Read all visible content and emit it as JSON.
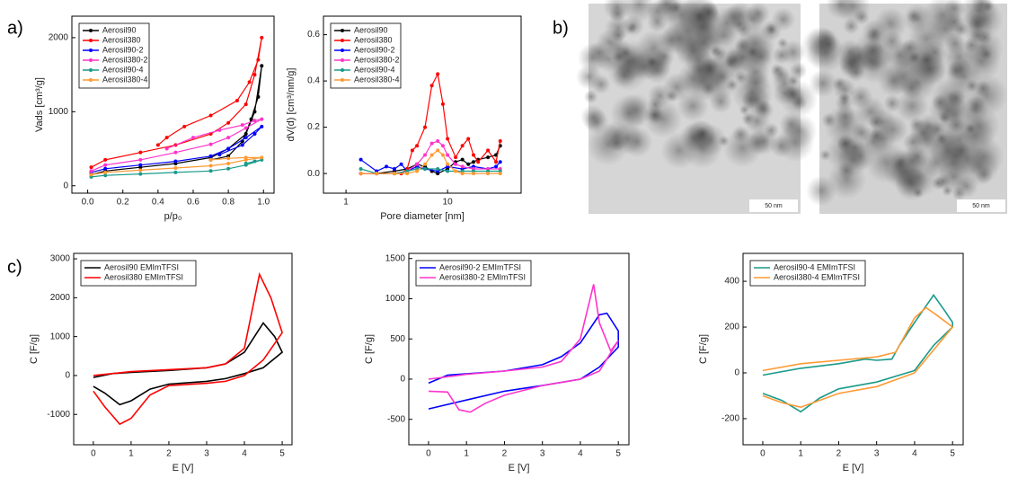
{
  "panel_labels": [
    "a)",
    "b)",
    "c)"
  ],
  "images": [
    {
      "scale_bar": "50 nm"
    },
    {
      "scale_bar": "50 nm"
    }
  ],
  "chart_data": [
    {
      "type": "line",
      "x_label": "p/p₀",
      "y_label": "Vads [cm³/g]",
      "markers": true,
      "legend": "upper left",
      "xlim": [
        -0.09,
        1.06
      ],
      "xticks": [
        {
          "value": 0,
          "label": "0.0"
        },
        0.2,
        0.4,
        0.6,
        0.8,
        {
          "value": 1,
          "label": "1.0"
        }
      ],
      "ylim": [
        -100,
        2290
      ],
      "yticks": [
        0,
        1000,
        2000
      ],
      "series": [
        {
          "name": "Aerosil90",
          "color": "#000000",
          "x": [
            0.02,
            0.1,
            0.3,
            0.5,
            0.7,
            0.8,
            0.9,
            0.95,
            0.99,
            0.97,
            0.93,
            0.88,
            0.8,
            0.7
          ],
          "values": [
            150,
            200,
            250,
            300,
            380,
            500,
            700,
            1000,
            1620,
            1200,
            900,
            600,
            400,
            350
          ]
        },
        {
          "name": "Aerosil380",
          "color": "#ff0000",
          "x": [
            0.02,
            0.1,
            0.3,
            0.5,
            0.7,
            0.8,
            0.9,
            0.95,
            0.99,
            0.97,
            0.92,
            0.85,
            0.7,
            0.55,
            0.45,
            0.4
          ],
          "values": [
            250,
            350,
            450,
            550,
            700,
            850,
            1100,
            1500,
            2000,
            1700,
            1400,
            1150,
            950,
            800,
            650,
            550
          ]
        },
        {
          "name": "Aerosil90-2",
          "color": "#0000ff",
          "x": [
            0.02,
            0.1,
            0.3,
            0.5,
            0.7,
            0.8,
            0.9,
            0.99,
            0.95,
            0.88,
            0.75
          ],
          "values": [
            180,
            230,
            280,
            330,
            400,
            500,
            650,
            800,
            700,
            550,
            420
          ]
        },
        {
          "name": "Aerosil380-2",
          "color": "#ff33cc",
          "x": [
            0.02,
            0.1,
            0.3,
            0.5,
            0.7,
            0.8,
            0.9,
            0.99,
            0.95,
            0.88,
            0.75,
            0.6,
            0.45
          ],
          "values": [
            200,
            280,
            350,
            450,
            560,
            650,
            780,
            900,
            880,
            820,
            750,
            650,
            500
          ]
        },
        {
          "name": "Aerosil90-4",
          "color": "#1a9a8a",
          "x": [
            0.02,
            0.1,
            0.3,
            0.5,
            0.7,
            0.8,
            0.9,
            0.99,
            0.95,
            0.9
          ],
          "values": [
            120,
            140,
            160,
            180,
            200,
            230,
            280,
            350,
            330,
            300
          ]
        },
        {
          "name": "Aerosil380-4",
          "color": "#ff9933",
          "x": [
            0.02,
            0.1,
            0.3,
            0.5,
            0.7,
            0.8,
            0.9,
            0.99,
            0.9,
            0.8,
            0.7
          ],
          "values": [
            150,
            180,
            210,
            240,
            270,
            300,
            350,
            380,
            380,
            370,
            350
          ]
        }
      ]
    },
    {
      "type": "line",
      "x_label": "Pore diameter [nm]",
      "y_label": "dV(d) [cm³/nm/g]",
      "markers": true,
      "legend": "upper left",
      "log_x": true,
      "xlim": [
        0.6,
        53
      ],
      "xticks": [
        1,
        10
      ],
      "ylim": [
        -0.085,
        0.68
      ],
      "yticks": [
        {
          "value": 0,
          "label": "0.0"
        },
        0.2,
        0.4,
        0.6
      ],
      "series": [
        {
          "name": "Aerosil90",
          "color": "#000000",
          "x": [
            1.4,
            2,
            3,
            4,
            5,
            6,
            7,
            8,
            10,
            12,
            14,
            16,
            18,
            20,
            25,
            30,
            33
          ],
          "values": [
            0,
            0,
            0.01,
            0.02,
            0.04,
            0.03,
            0.01,
            0,
            0.02,
            0.05,
            0.06,
            0.04,
            0.05,
            0.06,
            0.07,
            0.08,
            0.12
          ]
        },
        {
          "name": "Aerosil380",
          "color": "#ff0000",
          "x": [
            1.4,
            2,
            3,
            3.5,
            4,
            4.5,
            5,
            6,
            7,
            8,
            9,
            10,
            12,
            14,
            16,
            18,
            20,
            25,
            30,
            33
          ],
          "values": [
            0,
            0,
            0,
            0,
            0.02,
            0.1,
            0.12,
            0.2,
            0.38,
            0.43,
            0.3,
            0.15,
            0.07,
            0.12,
            0.15,
            0.08,
            0.05,
            0.1,
            0.05,
            0.14
          ]
        },
        {
          "name": "Aerosil90-2",
          "color": "#0000ff",
          "x": [
            1.4,
            2,
            2.5,
            3,
            3.5,
            4,
            5,
            6,
            8,
            10,
            14,
            18,
            25,
            30,
            33
          ],
          "values": [
            0.06,
            0.01,
            0.03,
            0.02,
            0.04,
            0.01,
            0.03,
            0.02,
            0.01,
            0.03,
            0.02,
            0.03,
            0.02,
            0.03,
            0.05
          ]
        },
        {
          "name": "Aerosil380-2",
          "color": "#ff33cc",
          "x": [
            1.4,
            2,
            3,
            4,
            5,
            6,
            7,
            8,
            9,
            10,
            12,
            14,
            18,
            25,
            33
          ],
          "values": [
            0,
            0,
            0,
            0.01,
            0.04,
            0.08,
            0.13,
            0.14,
            0.12,
            0.08,
            0.04,
            0.03,
            0.02,
            0.02,
            0.02
          ]
        },
        {
          "name": "Aerosil90-4",
          "color": "#1a9a8a",
          "x": [
            1.4,
            2,
            3,
            4,
            5,
            6,
            8,
            10,
            14,
            18,
            25,
            33
          ],
          "values": [
            0.02,
            0,
            0,
            0.01,
            0.02,
            0.02,
            0.02,
            0.01,
            0.01,
            0.01,
            0.01,
            0.01
          ]
        },
        {
          "name": "Aerosil380-4",
          "color": "#ff9933",
          "x": [
            1.4,
            2,
            3,
            4,
            5,
            6,
            7,
            8,
            9,
            10,
            12,
            14,
            18,
            25,
            33
          ],
          "values": [
            0,
            0,
            0,
            0,
            0.01,
            0.04,
            0.08,
            0.1,
            0.08,
            0.04,
            0.01,
            0,
            0,
            0,
            0
          ]
        }
      ]
    },
    {
      "type": "line",
      "x_label": "E [V]",
      "y_label": "C [F/g]",
      "legend": "upper left",
      "xlim": [
        -0.52,
        5.26
      ],
      "xticks": [
        0,
        1,
        2,
        3,
        4,
        5
      ],
      "ylim": [
        -1780,
        3140
      ],
      "yticks": [
        -1000,
        0,
        1000,
        2000,
        3000
      ],
      "series": [
        {
          "name": "Aerosil90 EMImTFSI",
          "color": "#000000",
          "x": [
            0,
            0.5,
            1,
            2,
            3,
            3.5,
            4,
            4.5,
            4.8,
            5,
            4.5,
            4,
            3.5,
            3,
            2,
            1.5,
            1,
            0.7,
            0.3,
            0
          ],
          "values": [
            -50,
            50,
            80,
            130,
            200,
            300,
            600,
            1350,
            1000,
            600,
            200,
            50,
            -80,
            -150,
            -220,
            -350,
            -650,
            -750,
            -450,
            -280
          ]
        },
        {
          "name": "Aerosil380 EMImTFSI",
          "color": "#ff0000",
          "x": [
            0,
            1,
            2,
            3,
            3.5,
            4,
            4.4,
            4.7,
            5,
            4.5,
            4,
            3.5,
            3,
            2,
            1.5,
            1,
            0.7,
            0.3,
            0
          ],
          "values": [
            0,
            100,
            150,
            200,
            300,
            700,
            2600,
            2000,
            1100,
            400,
            0,
            -150,
            -200,
            -260,
            -500,
            -1100,
            -1250,
            -800,
            -400
          ]
        }
      ]
    },
    {
      "type": "line",
      "x_label": "E [V]",
      "y_label": "C [F/g]",
      "legend": "upper left",
      "xlim": [
        -0.52,
        5.28
      ],
      "xticks": [
        0,
        1,
        2,
        3,
        4,
        5
      ],
      "ylim": [
        -816,
        1564
      ],
      "yticks": [
        -500,
        0,
        500,
        1000,
        1500
      ],
      "series": [
        {
          "name": "Aerosil90-2 EMImTFSI",
          "color": "#0000ff",
          "x": [
            0,
            0.5,
            2,
            3,
            3.5,
            4,
            4.5,
            4.7,
            5,
            5,
            4.5,
            4,
            3,
            2,
            1,
            0
          ],
          "values": [
            -50,
            50,
            100,
            180,
            280,
            450,
            800,
            820,
            600,
            400,
            150,
            0,
            -80,
            -150,
            -260,
            -370
          ]
        },
        {
          "name": "Aerosil380-2 EMImTFSI",
          "color": "#ff33cc",
          "x": [
            0,
            1,
            2,
            3,
            3.5,
            4,
            4.35,
            4.5,
            4.8,
            5,
            4.5,
            4,
            3,
            2,
            1.5,
            1.1,
            0.8,
            0.5,
            0
          ],
          "values": [
            0,
            60,
            100,
            150,
            220,
            500,
            1180,
            700,
            350,
            480,
            100,
            0,
            -80,
            -200,
            -300,
            -410,
            -380,
            -160,
            -150
          ]
        }
      ]
    },
    {
      "type": "line",
      "x_label": "E [V]",
      "y_label": "C [F/g]",
      "legend": "upper left",
      "xlim": [
        -0.52,
        5.28
      ],
      "xticks": [
        0,
        1,
        2,
        3,
        4,
        5
      ],
      "ylim": [
        -314,
        522
      ],
      "yticks": [
        -200,
        0,
        200,
        400
      ],
      "series": [
        {
          "name": "Aerosil90-4 EMImTFSI",
          "color": "#1a9a8a",
          "x": [
            0,
            1,
            2,
            2.7,
            3,
            3.4,
            3.6,
            4,
            4.5,
            4.8,
            5,
            5,
            4.5,
            4,
            3,
            2,
            1.5,
            1,
            0.5,
            0
          ],
          "values": [
            -10,
            20,
            40,
            60,
            55,
            60,
            120,
            220,
            340,
            270,
            220,
            200,
            120,
            10,
            -40,
            -70,
            -110,
            -170,
            -120,
            -90
          ]
        },
        {
          "name": "Aerosil380-4 EMImTFSI",
          "color": "#ff9933",
          "x": [
            0,
            1,
            2,
            3,
            3.5,
            4,
            4.3,
            4.6,
            5,
            4.5,
            4,
            3,
            2,
            1,
            0.5,
            0
          ],
          "values": [
            10,
            40,
            55,
            70,
            90,
            240,
            285,
            250,
            200,
            100,
            0,
            -60,
            -90,
            -150,
            -130,
            -100
          ]
        }
      ]
    }
  ]
}
